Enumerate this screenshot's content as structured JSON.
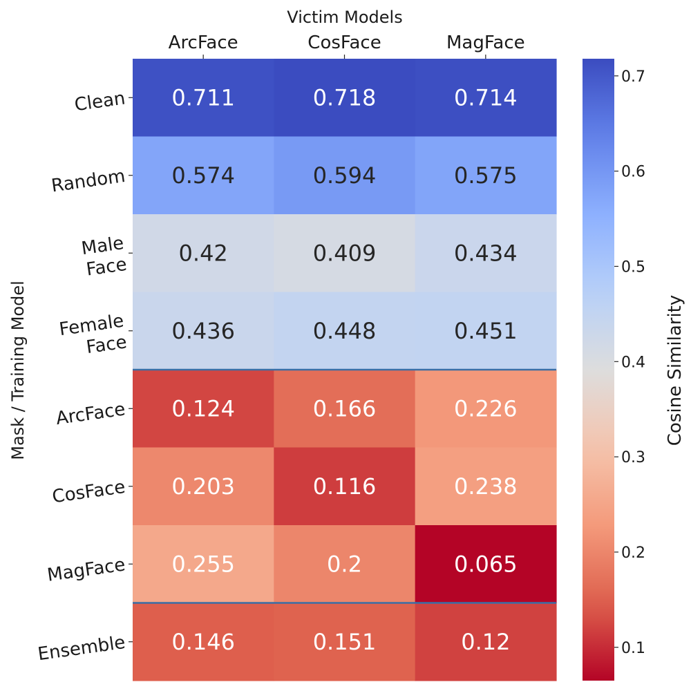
{
  "chart_data": {
    "type": "heatmap",
    "title": "",
    "xlabel": "Victim Models",
    "ylabel": "Mask / Training Model",
    "x_categories": [
      "ArcFace",
      "CosFace",
      "MagFace"
    ],
    "y_categories": [
      [
        "Clean"
      ],
      [
        "Random"
      ],
      [
        "Male",
        "Face"
      ],
      [
        "Female",
        "Face"
      ],
      [
        "ArcFace"
      ],
      [
        "CosFace"
      ],
      [
        "MagFace"
      ],
      [
        "Ensemble"
      ]
    ],
    "values": [
      [
        0.711,
        0.718,
        0.714
      ],
      [
        0.574,
        0.594,
        0.575
      ],
      [
        0.42,
        0.409,
        0.434
      ],
      [
        0.436,
        0.448,
        0.451
      ],
      [
        0.124,
        0.166,
        0.226
      ],
      [
        0.203,
        0.116,
        0.238
      ],
      [
        0.255,
        0.2,
        0.065
      ],
      [
        0.146,
        0.151,
        0.12
      ]
    ],
    "value_labels": [
      [
        "0.711",
        "0.718",
        "0.714"
      ],
      [
        "0.574",
        "0.594",
        "0.575"
      ],
      [
        "0.42",
        "0.409",
        "0.434"
      ],
      [
        "0.436",
        "0.448",
        "0.451"
      ],
      [
        "0.124",
        "0.166",
        "0.226"
      ],
      [
        "0.203",
        "0.116",
        "0.238"
      ],
      [
        "0.255",
        "0.2",
        "0.065"
      ],
      [
        "0.146",
        "0.151",
        "0.12"
      ]
    ],
    "row_separators_after": [
      3,
      6
    ],
    "separator_color": "#3a6ea5",
    "colormap": "coolwarm_r",
    "vmin": 0.065,
    "vmax": 0.718,
    "colorbar": {
      "label": "Cosine Similarity",
      "ticks": [
        0.1,
        0.2,
        0.3,
        0.4,
        0.5,
        0.6,
        0.7
      ],
      "tick_labels": [
        "0.1",
        "0.2",
        "0.3",
        "0.4",
        "0.5",
        "0.6",
        "0.7"
      ]
    }
  }
}
